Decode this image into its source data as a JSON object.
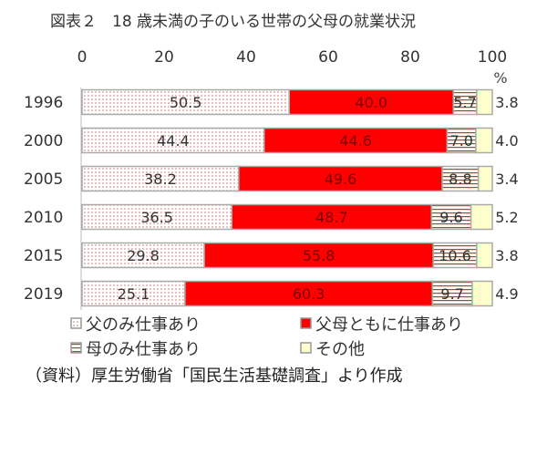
{
  "chart_data": {
    "type": "bar",
    "orientation": "horizontal",
    "stacked": true,
    "title": "図表２　18 歳未満の子のいる世帯の父母の就業状況",
    "unit": "%",
    "xlim": [
      0,
      100
    ],
    "xticks": [
      "0",
      "20",
      "40",
      "60",
      "80",
      "100"
    ],
    "categories": [
      "1996",
      "2000",
      "2005",
      "2010",
      "2015",
      "2019"
    ],
    "series": [
      {
        "name": "父のみ仕事あり",
        "color": "#f4c7c7",
        "pattern": "dots",
        "values": [
          50.5,
          44.4,
          38.2,
          36.5,
          29.8,
          25.1
        ]
      },
      {
        "name": "父母ともに仕事あり",
        "color": "#ff0000",
        "pattern": "solid",
        "values": [
          40.0,
          44.6,
          49.6,
          48.7,
          55.8,
          60.3
        ]
      },
      {
        "name": "母のみ仕事あり",
        "color": "#c00000",
        "pattern": "hstripes",
        "values": [
          5.7,
          7.0,
          8.8,
          9.6,
          10.6,
          9.7
        ]
      },
      {
        "name": "その他",
        "color": "#ffffcc",
        "pattern": "solid",
        "values": [
          3.8,
          4.0,
          3.4,
          5.2,
          3.8,
          4.9
        ]
      }
    ],
    "legend_position": "bottom",
    "grid": false
  },
  "source": "（資料）厚生労働省「国民生活基礎調査」より作成"
}
